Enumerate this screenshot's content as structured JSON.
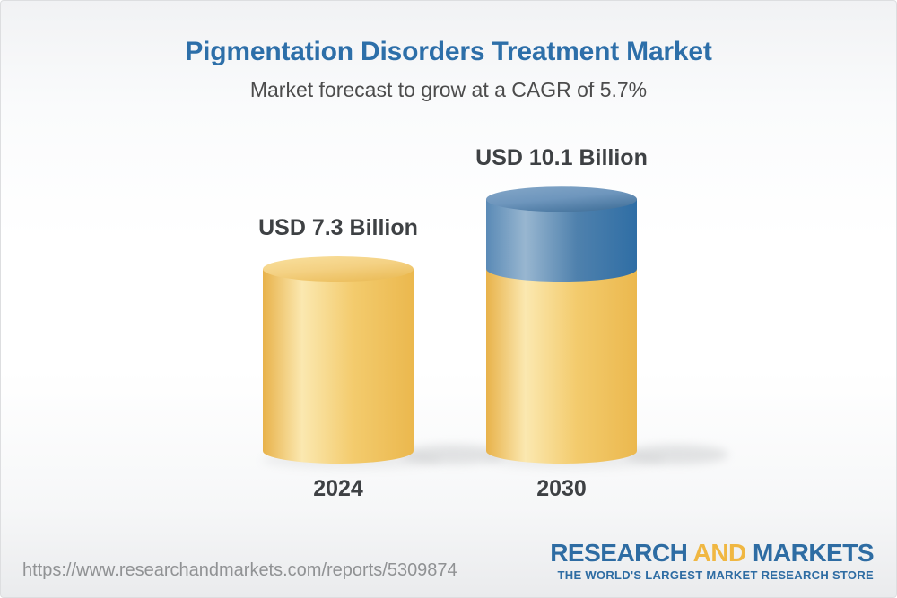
{
  "header": {
    "title": "Pigmentation Disorders Treatment Market",
    "subtitle": "Market forecast to grow at a CAGR of 5.7%"
  },
  "chart_data": {
    "type": "bar",
    "variant": "3d-cylinder",
    "title": "Pigmentation Disorders Treatment Market",
    "subtitle": "Market forecast to grow at a CAGR of 5.7%",
    "cagr_percent": 5.7,
    "unit": "USD Billion",
    "categories": [
      "2024",
      "2030"
    ],
    "values": [
      7.3,
      10.1
    ],
    "bars": [
      {
        "category": "2024",
        "total": 7.3,
        "label": "USD 7.3 Billion",
        "segments": [
          {
            "value": 7.3,
            "color": "gold"
          }
        ]
      },
      {
        "category": "2030",
        "total": 10.1,
        "label": "USD 10.1 Billion",
        "segments": [
          {
            "value": 7.3,
            "color": "gold"
          },
          {
            "value": 2.8,
            "color": "blue"
          }
        ]
      }
    ],
    "colors": {
      "gold": "#f0c467",
      "blue": "#4f81ad"
    },
    "xlabel": "",
    "ylabel": "",
    "grid": "off",
    "legend_position": "none"
  },
  "footer": {
    "url": "https://www.researchandmarkets.com/reports/5309874",
    "logo": {
      "word1": "RESEARCH",
      "word2": "AND",
      "word3": "MARKETS",
      "tagline": "THE WORLD'S LARGEST MARKET RESEARCH STORE",
      "blue": "#2e6ca3",
      "gold": "#f0b742"
    }
  },
  "theme": {
    "title_color": "#2d6fa9",
    "subtitle_color": "#4c4c4c",
    "label_color": "#3e4144",
    "url_color": "#909294",
    "background_top": "#f1f2f4",
    "background_bottom": "#eaebed"
  }
}
